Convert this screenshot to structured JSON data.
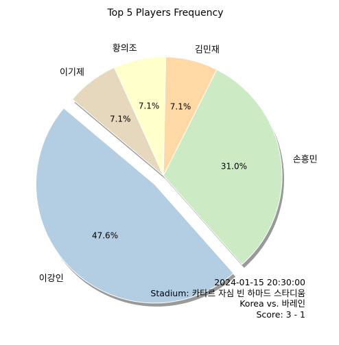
{
  "chart_data": {
    "type": "pie",
    "title": "Top 5 Players Frequency",
    "slices": [
      {
        "label": "이강인",
        "value": 47.6,
        "pct_label": "47.6%",
        "color": "#b3cde3",
        "exploded": true
      },
      {
        "label": "손흥민",
        "value": 31.0,
        "pct_label": "31.0%",
        "color": "#ccebc5",
        "exploded": false
      },
      {
        "label": "김민재",
        "value": 7.1,
        "pct_label": "7.1%",
        "color": "#fed9a6",
        "exploded": false
      },
      {
        "label": "황의조",
        "value": 7.1,
        "pct_label": "7.1%",
        "color": "#ffffcc",
        "exploded": false
      },
      {
        "label": "이기제",
        "value": 7.1,
        "pct_label": "7.1%",
        "color": "#e5d8bd",
        "exploded": false
      }
    ],
    "shadow": true,
    "edge_color": "#ffffff"
  },
  "match_info": {
    "datetime": "2024-01-15 20:30:00",
    "stadium": "Stadium: 카타르 자심 빈 하마드 스타디움",
    "teams": "Korea vs. 바레인",
    "score": "Score: 3 - 1"
  }
}
